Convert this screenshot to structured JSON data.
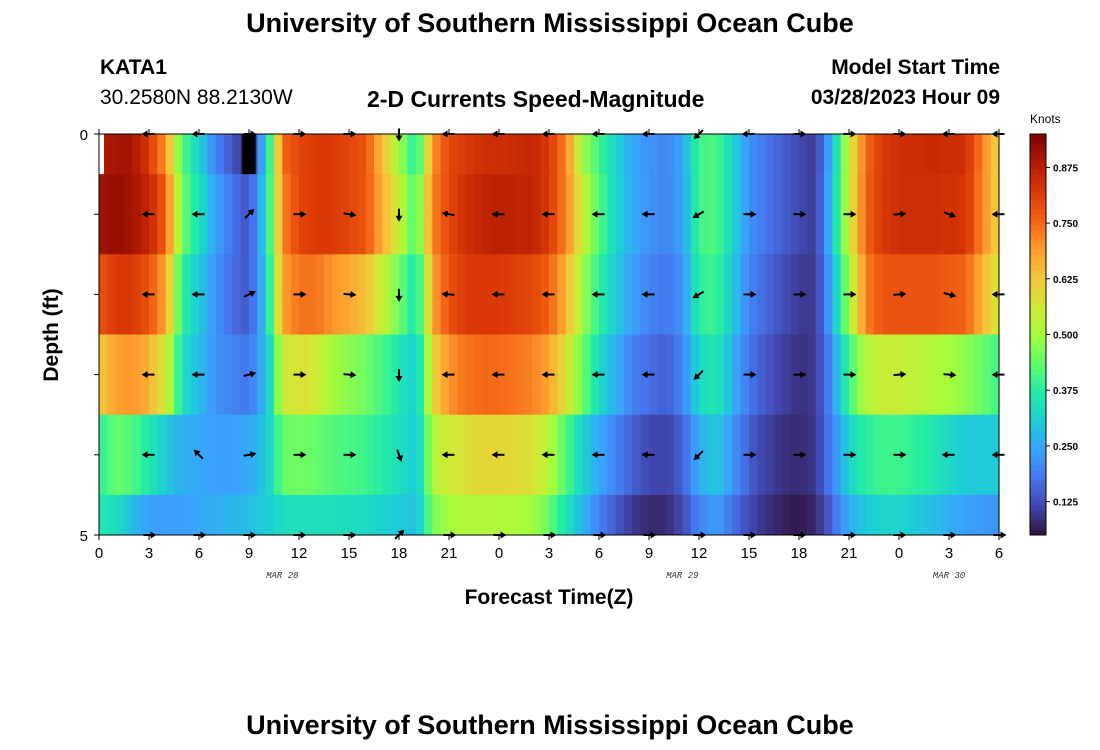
{
  "header": {
    "title": "University of Southern Mississippi Ocean Cube",
    "station_id": "KATA1",
    "station_coords": "30.2580N  88.2130W",
    "plot_title": "2-D Currents Speed-Magnitude",
    "model_start_label": "Model Start Time",
    "model_start_value": "03/28/2023 Hour 09"
  },
  "footer": {
    "title": "University of Southern Mississippi Ocean Cube"
  },
  "colorbar": {
    "unit_label": "Knots",
    "ticks": [
      "0.125",
      "0.250",
      "0.375",
      "0.500",
      "0.625",
      "0.750",
      "0.875"
    ],
    "tick_values": [
      0.125,
      0.25,
      0.375,
      0.5,
      0.625,
      0.75,
      0.875
    ],
    "range": [
      0.05,
      0.95
    ],
    "colors": [
      "#30123b",
      "#4145ab",
      "#4675ed",
      "#39a2fc",
      "#1bcfd4",
      "#24eca6",
      "#61fc6c",
      "#a4fc3b",
      "#d1e834",
      "#f3c63a",
      "#fe9b2d",
      "#f36315",
      "#d93806",
      "#b11901",
      "#7a0402"
    ]
  },
  "chart_data": {
    "type": "heatmap",
    "title": "2-D Currents Speed-Magnitude",
    "xlabel": "Forecast Time(Z)",
    "ylabel": "Depth (ft)",
    "x_ticks": [
      "0",
      "3",
      "6",
      "9",
      "12",
      "15",
      "18",
      "21",
      "0",
      "3",
      "6",
      "9",
      "12",
      "15",
      "18",
      "21",
      "0",
      "3",
      "6"
    ],
    "x_range_hours": [
      0,
      54
    ],
    "y_ticks": [
      "0",
      "5"
    ],
    "y_range_ft": [
      0,
      5
    ],
    "date_labels": [
      {
        "text": "MAR 28",
        "hour": 11
      },
      {
        "text": "MAR 29",
        "hour": 35
      },
      {
        "text": "MAR 30",
        "hour": 51
      }
    ],
    "z_unit": "Knots",
    "key_hours": [
      0,
      1,
      2,
      3,
      4,
      4.5,
      5,
      6,
      7,
      8,
      9,
      10,
      10.5,
      11,
      12,
      13,
      14,
      16,
      18,
      19,
      19.5,
      20,
      21,
      22,
      23,
      24,
      26,
      27,
      28,
      29,
      30,
      31,
      32,
      33,
      34,
      35,
      36,
      37,
      38,
      39,
      40,
      41,
      42,
      43,
      44,
      45,
      46,
      47,
      48,
      50,
      52,
      54
    ],
    "layers": [
      {
        "depth_ft": "0-0.5",
        "speeds": [
          0.88,
          0.9,
          0.9,
          0.82,
          0.7,
          0.55,
          0.42,
          0.32,
          0.2,
          0.14,
          0.06,
          0.3,
          0.5,
          0.75,
          0.8,
          0.82,
          0.82,
          0.78,
          0.5,
          0.36,
          0.5,
          0.7,
          0.8,
          0.82,
          0.84,
          0.84,
          0.86,
          0.82,
          0.72,
          0.5,
          0.4,
          0.32,
          0.25,
          0.22,
          0.2,
          0.25,
          0.4,
          0.42,
          0.32,
          0.22,
          0.18,
          0.15,
          0.12,
          0.1,
          0.28,
          0.55,
          0.75,
          0.82,
          0.84,
          0.85,
          0.84,
          0.6
        ]
      },
      {
        "depth_ft": "0.5-1.5",
        "speeds": [
          0.9,
          0.92,
          0.9,
          0.86,
          0.76,
          0.6,
          0.45,
          0.34,
          0.24,
          0.18,
          0.13,
          0.32,
          0.5,
          0.72,
          0.8,
          0.82,
          0.82,
          0.78,
          0.55,
          0.4,
          0.55,
          0.72,
          0.8,
          0.84,
          0.86,
          0.87,
          0.86,
          0.82,
          0.72,
          0.55,
          0.42,
          0.32,
          0.26,
          0.22,
          0.2,
          0.24,
          0.4,
          0.42,
          0.32,
          0.22,
          0.18,
          0.15,
          0.12,
          0.1,
          0.3,
          0.55,
          0.76,
          0.82,
          0.84,
          0.84,
          0.83,
          0.6
        ]
      },
      {
        "depth_ft": "1.5-2.5",
        "speeds": [
          0.78,
          0.82,
          0.82,
          0.78,
          0.68,
          0.52,
          0.38,
          0.3,
          0.22,
          0.17,
          0.14,
          0.3,
          0.48,
          0.68,
          0.74,
          0.74,
          0.7,
          0.64,
          0.45,
          0.35,
          0.48,
          0.68,
          0.78,
          0.82,
          0.82,
          0.82,
          0.8,
          0.76,
          0.66,
          0.5,
          0.38,
          0.3,
          0.24,
          0.2,
          0.18,
          0.22,
          0.38,
          0.4,
          0.3,
          0.2,
          0.16,
          0.13,
          0.1,
          0.1,
          0.26,
          0.5,
          0.72,
          0.78,
          0.78,
          0.78,
          0.76,
          0.55
        ]
      },
      {
        "depth_ft": "2.5-3.5",
        "speeds": [
          0.62,
          0.68,
          0.7,
          0.66,
          0.56,
          0.45,
          0.34,
          0.28,
          0.22,
          0.2,
          0.18,
          0.28,
          0.4,
          0.55,
          0.58,
          0.56,
          0.5,
          0.45,
          0.36,
          0.3,
          0.42,
          0.6,
          0.7,
          0.74,
          0.75,
          0.75,
          0.72,
          0.68,
          0.58,
          0.45,
          0.33,
          0.26,
          0.2,
          0.17,
          0.15,
          0.2,
          0.33,
          0.36,
          0.27,
          0.18,
          0.14,
          0.11,
          0.09,
          0.1,
          0.22,
          0.4,
          0.52,
          0.55,
          0.55,
          0.52,
          0.48,
          0.4
        ]
      },
      {
        "depth_ft": "3.5-4.5",
        "speeds": [
          0.38,
          0.44,
          0.42,
          0.36,
          0.3,
          0.28,
          0.26,
          0.25,
          0.24,
          0.24,
          0.25,
          0.3,
          0.36,
          0.44,
          0.45,
          0.44,
          0.42,
          0.4,
          0.34,
          0.3,
          0.38,
          0.52,
          0.56,
          0.58,
          0.6,
          0.6,
          0.58,
          0.52,
          0.42,
          0.32,
          0.25,
          0.2,
          0.15,
          0.12,
          0.11,
          0.15,
          0.26,
          0.3,
          0.23,
          0.15,
          0.11,
          0.09,
          0.08,
          0.1,
          0.2,
          0.32,
          0.38,
          0.4,
          0.4,
          0.36,
          0.3,
          0.3
        ]
      },
      {
        "depth_ft": "4.5-5",
        "speeds": [
          0.36,
          0.34,
          0.28,
          0.24,
          0.24,
          0.24,
          0.24,
          0.25,
          0.26,
          0.27,
          0.28,
          0.3,
          0.32,
          0.34,
          0.34,
          0.34,
          0.34,
          0.33,
          0.3,
          0.28,
          0.36,
          0.46,
          0.5,
          0.52,
          0.52,
          0.52,
          0.5,
          0.44,
          0.35,
          0.27,
          0.2,
          0.14,
          0.1,
          0.08,
          0.08,
          0.12,
          0.2,
          0.24,
          0.18,
          0.12,
          0.09,
          0.07,
          0.06,
          0.08,
          0.16,
          0.26,
          0.3,
          0.32,
          0.32,
          0.28,
          0.24,
          0.22
        ]
      }
    ],
    "vector_hours": [
      3,
      6,
      9,
      12,
      15,
      18,
      21,
      24,
      27,
      30,
      33,
      36,
      39,
      42,
      45,
      48,
      51,
      54
    ],
    "vector_rows": [
      {
        "depth_ft": 0,
        "angles_deg": [
          180,
          180,
          0,
          0,
          0,
          270,
          180,
          180,
          180,
          180,
          180,
          225,
          180,
          0,
          0,
          0,
          180,
          180
        ]
      },
      {
        "depth_ft": 1,
        "angles_deg": [
          180,
          180,
          45,
          0,
          -10,
          270,
          170,
          180,
          180,
          180,
          180,
          210,
          0,
          0,
          0,
          5,
          -20,
          180
        ]
      },
      {
        "depth_ft": 2,
        "angles_deg": [
          180,
          180,
          25,
          0,
          -5,
          270,
          175,
          180,
          180,
          180,
          180,
          210,
          0,
          0,
          0,
          5,
          -15,
          180
        ]
      },
      {
        "depth_ft": 3,
        "angles_deg": [
          180,
          180,
          15,
          0,
          -5,
          270,
          180,
          180,
          180,
          180,
          180,
          225,
          0,
          0,
          0,
          5,
          -5,
          180
        ]
      },
      {
        "depth_ft": 4,
        "angles_deg": [
          180,
          135,
          10,
          0,
          0,
          -70,
          180,
          180,
          180,
          180,
          180,
          225,
          0,
          0,
          0,
          0,
          180,
          180
        ]
      },
      {
        "depth_ft": 5,
        "angles_deg": [
          0,
          0,
          0,
          0,
          0,
          45,
          0,
          0,
          0,
          0,
          0,
          0,
          0,
          0,
          0,
          0,
          0,
          0
        ]
      }
    ],
    "surface_mask": {
      "blank_hours": [
        0,
        0.3
      ],
      "black_hours": [
        8.6,
        9.4
      ],
      "black_depth_ft": [
        0,
        0.5
      ]
    }
  }
}
